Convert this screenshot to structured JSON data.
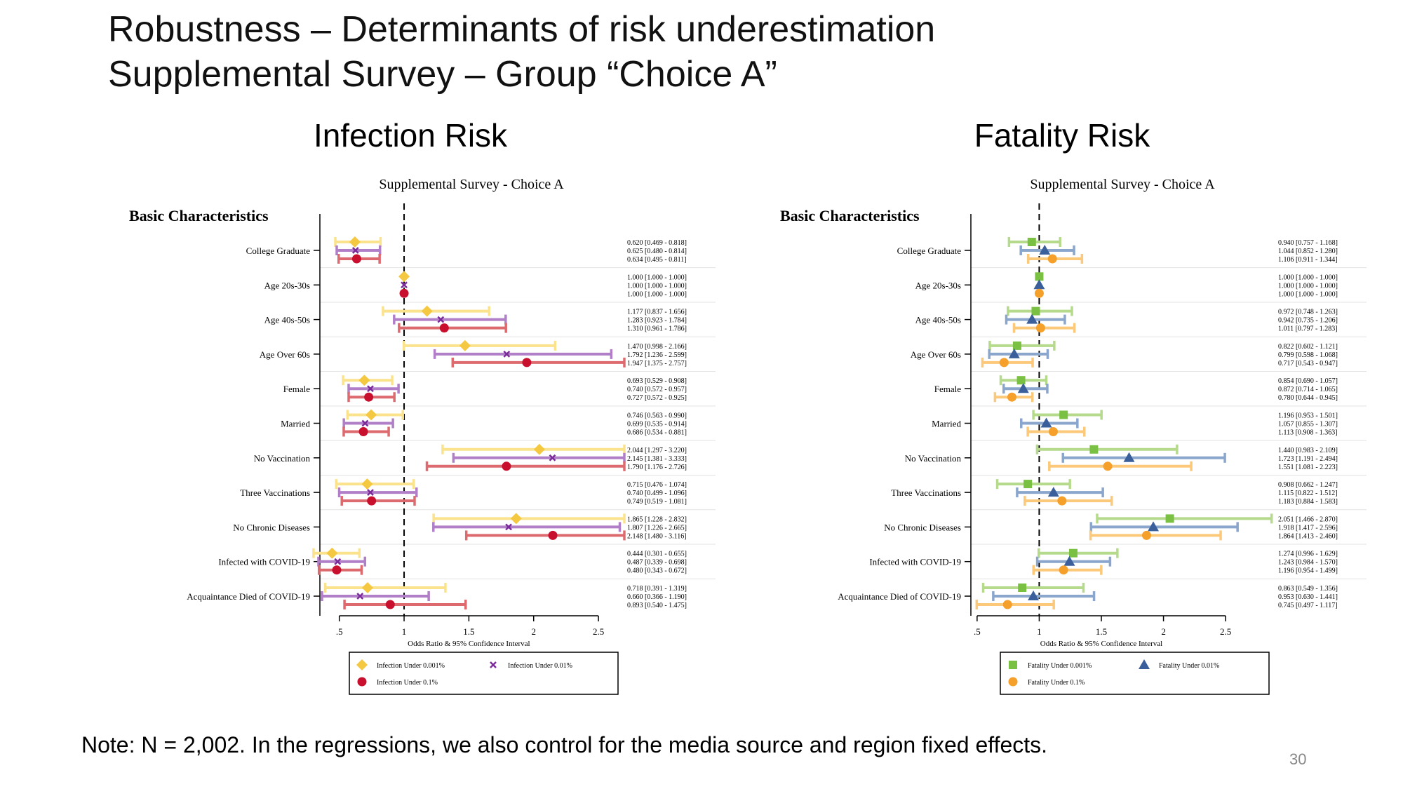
{
  "slide": {
    "title_line1": "Robustness – Determinants of risk underestimation",
    "title_line2": "Supplemental Survey – Group “Choice A”",
    "note": "Note: N = 2,002. In the regressions, we also control for the media source and region fixed effects.",
    "page_number": "30"
  },
  "chart_data": [
    {
      "panel_title": "Infection Risk",
      "type": "forest",
      "title": "Supplemental Survey - Choice A",
      "section_label": "Basic Characteristics",
      "xlabel": "Odds Ratio & 95% Confidence Interval",
      "xticks": [
        0.5,
        1,
        1.5,
        2,
        2.5
      ],
      "xtick_labels": [
        ".5",
        "1",
        "1.5",
        "2",
        "2.5"
      ],
      "xlim": [
        0.35,
        2.7
      ],
      "reference_line": 1,
      "grid": "horizontal",
      "legend_placement": "bottom",
      "categories": [
        "College Graduate",
        "Age 20s-30s",
        "Age 40s-50s",
        "Age Over 60s",
        "Female",
        "Married",
        "No Vaccination",
        "Three Vaccinations",
        "No Chronic Diseases",
        "Infected with COVID-19",
        "Acquaintance Died of COVID-19"
      ],
      "series": [
        {
          "name": "Infection Under 0.001%",
          "marker": "diamond",
          "marker_color": "#f5c842",
          "ci_color": "#fbe38e",
          "estimates": [
            0.62,
            1.0,
            1.177,
            1.47,
            0.693,
            0.746,
            2.044,
            0.715,
            1.865,
            0.444,
            0.718
          ],
          "ci_lower": [
            0.469,
            1.0,
            0.837,
            0.998,
            0.529,
            0.563,
            1.297,
            0.476,
            1.228,
            0.301,
            0.391
          ],
          "ci_upper": [
            0.818,
            1.0,
            1.656,
            2.166,
            0.908,
            0.99,
            3.22,
            1.074,
            2.832,
            0.655,
            1.319
          ],
          "labels": [
            "0.620 [0.469 - 0.818]",
            "1.000 [1.000 - 1.000]",
            "1.177 [0.837 - 1.656]",
            "1.470 [0.998 - 2.166]",
            "0.693 [0.529 - 0.908]",
            "0.746 [0.563 - 0.990]",
            "2.044 [1.297 - 3.220]",
            "0.715 [0.476 - 1.074]",
            "1.865 [1.228 - 2.832]",
            "0.444 [0.301 - 0.655]",
            "0.718 [0.391 - 1.319]"
          ]
        },
        {
          "name": "Infection Under 0.01%",
          "marker": "x",
          "marker_color": "#7b2a9a",
          "ci_color": "#b07fc8",
          "estimates": [
            0.625,
            1.0,
            1.283,
            1.792,
            0.74,
            0.699,
            2.145,
            0.74,
            1.807,
            0.487,
            0.66
          ],
          "ci_lower": [
            0.48,
            1.0,
            0.923,
            1.236,
            0.572,
            0.535,
            1.381,
            0.499,
            1.226,
            0.339,
            0.366
          ],
          "ci_upper": [
            0.814,
            1.0,
            1.784,
            2.599,
            0.957,
            0.914,
            3.333,
            1.096,
            2.665,
            0.698,
            1.19
          ],
          "labels": [
            "0.625 [0.480 - 0.814]",
            "1.000 [1.000 - 1.000]",
            "1.283 [0.923 - 1.784]",
            "1.792 [1.236 - 2.599]",
            "0.740 [0.572 - 0.957]",
            "0.699 [0.535 - 0.914]",
            "2.145 [1.381 - 3.333]",
            "0.740 [0.499 - 1.096]",
            "1.807 [1.226 - 2.665]",
            "0.487 [0.339 - 0.698]",
            "0.660 [0.366 - 1.190]"
          ]
        },
        {
          "name": "Infection Under 0.1%",
          "marker": "circle",
          "marker_color": "#c8102e",
          "ci_color": "#dc6a6e",
          "estimates": [
            0.634,
            1.0,
            1.31,
            1.947,
            0.727,
            0.686,
            1.79,
            0.749,
            2.148,
            0.48,
            0.893
          ],
          "ci_lower": [
            0.495,
            1.0,
            0.961,
            1.375,
            0.572,
            0.534,
            1.176,
            0.519,
            1.48,
            0.343,
            0.54
          ],
          "ci_upper": [
            0.811,
            1.0,
            1.786,
            2.757,
            0.925,
            0.881,
            2.726,
            1.081,
            3.116,
            0.672,
            1.475
          ],
          "labels": [
            "0.634 [0.495 - 0.811]",
            "1.000 [1.000 - 1.000]",
            "1.310 [0.961 - 1.786]",
            "1.947 [1.375 - 2.757]",
            "0.727 [0.572 - 0.925]",
            "0.686 [0.534 - 0.881]",
            "1.790 [1.176 - 2.726]",
            "0.749 [0.519 - 1.081]",
            "2.148 [1.480 - 3.116]",
            "0.480 [0.343 - 0.672]",
            "0.893 [0.540 - 1.475]"
          ]
        }
      ]
    },
    {
      "panel_title": "Fatality Risk",
      "type": "forest",
      "title": "Supplemental Survey - Choice A",
      "section_label": "Basic Characteristics",
      "xlabel": "Odds Ratio & 95% Confidence Interval",
      "xticks": [
        0.5,
        1,
        1.5,
        2,
        2.5
      ],
      "xtick_labels": [
        ".5",
        "1",
        "1.5",
        "2",
        "2.5"
      ],
      "xlim": [
        0.45,
        2.9
      ],
      "reference_line": 1,
      "grid": "horizontal",
      "legend_placement": "bottom",
      "categories": [
        "College Graduate",
        "Age 20s-30s",
        "Age 40s-50s",
        "Age Over 60s",
        "Female",
        "Married",
        "No Vaccination",
        "Three Vaccinations",
        "No Chronic Diseases",
        "Infected with COVID-19",
        "Acquaintance Died of COVID-19"
      ],
      "series": [
        {
          "name": "Fatality Under 0.001%",
          "marker": "square",
          "marker_color": "#7ac143",
          "ci_color": "#b5da8c",
          "estimates": [
            0.94,
            1.0,
            0.972,
            0.822,
            0.854,
            1.196,
            1.44,
            0.908,
            2.051,
            1.274,
            0.863
          ],
          "ci_lower": [
            0.757,
            1.0,
            0.748,
            0.602,
            0.69,
            0.953,
            0.983,
            0.662,
            1.466,
            0.996,
            0.549
          ],
          "ci_upper": [
            1.168,
            1.0,
            1.263,
            1.121,
            1.057,
            1.501,
            2.109,
            1.247,
            2.87,
            1.629,
            1.356
          ],
          "labels": [
            "0.940 [0.757 - 1.168]",
            "1.000 [1.000 - 1.000]",
            "0.972 [0.748 - 1.263]",
            "0.822 [0.602 - 1.121]",
            "0.854 [0.690 - 1.057]",
            "1.196 [0.953 - 1.501]",
            "1.440 [0.983 - 2.109]",
            "0.908 [0.662 - 1.247]",
            "2.051 [1.466 - 2.870]",
            "1.274 [0.996 - 1.629]",
            "0.863 [0.549 - 1.356]"
          ]
        },
        {
          "name": "Fatality Under 0.01%",
          "marker": "triangle",
          "marker_color": "#3a5f9a",
          "ci_color": "#8aa6cc",
          "estimates": [
            1.044,
            1.0,
            0.942,
            0.799,
            0.872,
            1.057,
            1.723,
            1.115,
            1.918,
            1.243,
            0.953
          ],
          "ci_lower": [
            0.852,
            1.0,
            0.735,
            0.598,
            0.714,
            0.855,
            1.191,
            0.822,
            1.417,
            0.984,
            0.63
          ],
          "ci_upper": [
            1.28,
            1.0,
            1.206,
            1.068,
            1.065,
            1.307,
            2.494,
            1.512,
            2.596,
            1.57,
            1.441
          ],
          "labels": [
            "1.044 [0.852 - 1.280]",
            "1.000 [1.000 - 1.000]",
            "0.942 [0.735 - 1.206]",
            "0.799 [0.598 - 1.068]",
            "0.872 [0.714 - 1.065]",
            "1.057 [0.855 - 1.307]",
            "1.723 [1.191 - 2.494]",
            "1.115 [0.822 - 1.512]",
            "1.918 [1.417 - 2.596]",
            "1.243 [0.984 - 1.570]",
            "0.953 [0.630 - 1.441]"
          ]
        },
        {
          "name": "Fatality Under 0.1%",
          "marker": "circle",
          "marker_color": "#f5a02a",
          "ci_color": "#fbc979",
          "estimates": [
            1.106,
            1.0,
            1.011,
            0.717,
            0.78,
            1.113,
            1.551,
            1.183,
            1.864,
            1.196,
            0.745
          ],
          "ci_lower": [
            0.911,
            1.0,
            0.797,
            0.543,
            0.644,
            0.908,
            1.081,
            0.884,
            1.413,
            0.954,
            0.497
          ],
          "ci_upper": [
            1.344,
            1.0,
            1.283,
            0.947,
            0.945,
            1.363,
            2.223,
            1.583,
            2.46,
            1.499,
            1.117
          ],
          "labels": [
            "1.106 [0.911 - 1.344]",
            "1.000 [1.000 - 1.000]",
            "1.011 [0.797 - 1.283]",
            "0.717 [0.543 - 0.947]",
            "0.780 [0.644 - 0.945]",
            "1.113 [0.908 - 1.363]",
            "1.551 [1.081 - 2.223]",
            "1.183 [0.884 - 1.583]",
            "1.864 [1.413 - 2.460]",
            "1.196 [0.954 - 1.499]",
            "0.745 [0.497 - 1.117]"
          ]
        }
      ]
    }
  ]
}
